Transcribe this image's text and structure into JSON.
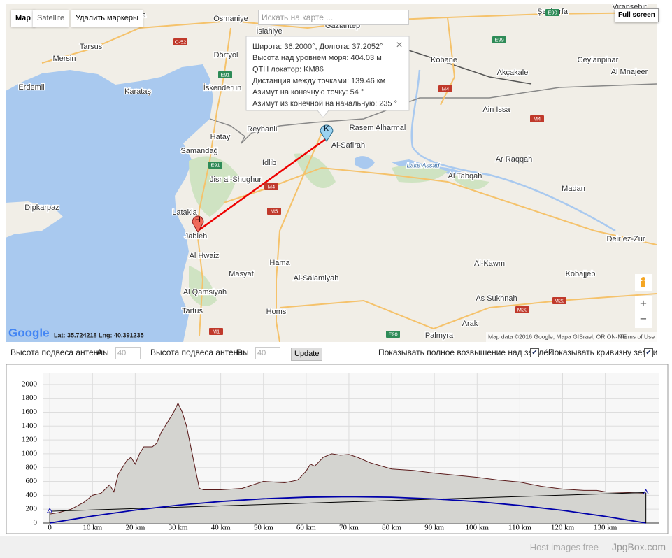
{
  "map": {
    "map_type_buttons": [
      "Map",
      "Satellite"
    ],
    "remove_markers": "Удалить маркеры",
    "search_placeholder": "Искать на карте ...",
    "fullscreen": "Full screen",
    "popup_lines": [
      "Широта: 36.2000°, Долгота: 37.2052°",
      "Высота над уровнем моря: 404.03 м",
      "QTH локатор: KM86",
      "Дистанция между точками: 139.46 км",
      "Азимут на конечную точку: 54 °",
      "Азимут из конечной на начальную: 235 °"
    ],
    "popup_close": "×",
    "place_labels": [
      "Adana",
      "Osmaniye",
      "İslahiye",
      "Gaziantep",
      "Şanlıurfa",
      "Viranşehir",
      "Tarsus",
      "Mersin",
      "Dörtyol",
      "Erdemli",
      "Karataş",
      "İskenderun",
      "Kobane",
      "Akçakale",
      "Ceylanpinar",
      "Al Mnajeer",
      "Ain Issa",
      "Hatay",
      "Reyhanlı",
      "Rasem Alharmal",
      "Al-Safirah",
      "Samandağ",
      "Idlib",
      "Lake Assad",
      "Al Tabqah",
      "Ar Raqqah",
      "Jisr al-Shughur",
      "Madan",
      "Dipkarpaz",
      "Latakia",
      "Jableh",
      "Al Hwaiz",
      "Hama",
      "Masyaf",
      "Al-Salamiyah",
      "Deir ez-Zur",
      "Al-Kawm",
      "Kobajjeb",
      "Al Qamsiyah",
      "As Sukhnah",
      "Tartus",
      "Homs",
      "Arak",
      "Palmyra"
    ],
    "road_shields": [
      "E90",
      "O-52",
      "E91",
      "E91",
      "M4",
      "M4",
      "M4",
      "M5",
      "M1",
      "E99",
      "M20",
      "M20",
      "E90"
    ],
    "markers": [
      "K",
      "H"
    ],
    "logo": "Google",
    "cursor": "Lat: 35.724218 Lng: 40.391235",
    "attribution": "Map data ©2016 Google, Mapa GISrael, ORION-ME",
    "terms": "Terms of Use",
    "zoom_in": "+",
    "zoom_out": "−"
  },
  "controls": {
    "antenna_a_label": "Высота подвеса антенны",
    "antenna_a_letter": "A:",
    "antenna_a_value": "40",
    "antenna_b_label": "Высота подвеса антенны",
    "antenna_b_letter": "B:",
    "antenna_b_value": "40",
    "update": "Update",
    "show_elevation": "Показывать полное возвышение над землёй",
    "show_curvature": "Показывать кривизну земли"
  },
  "chart_data": {
    "type": "area",
    "xlim": [
      -1.5,
      142.5
    ],
    "ylim": [
      0,
      2170
    ],
    "xticks": [
      0,
      {
        "value": 10,
        "label": "10 km"
      },
      {
        "value": 20,
        "label": "20 km"
      },
      {
        "value": 30,
        "label": "30 km"
      },
      {
        "value": 40,
        "label": "40 km"
      },
      {
        "value": 50,
        "label": "50 km"
      },
      {
        "value": 60,
        "label": "60 km"
      },
      {
        "value": 70,
        "label": "70 km"
      },
      {
        "value": 80,
        "label": "80 km"
      },
      {
        "value": 90,
        "label": "90 km"
      },
      {
        "value": 100,
        "label": "100 km"
      },
      {
        "value": 110,
        "label": "110 km"
      },
      {
        "value": 120,
        "label": "120 km"
      },
      {
        "value": 130,
        "label": "130 km"
      }
    ],
    "yticks": [
      0,
      200,
      400,
      600,
      800,
      1000,
      1200,
      1400,
      1600,
      1800,
      2000
    ],
    "grid": true,
    "series": [
      {
        "color": "#d4d4d0",
        "x": [
          0,
          2,
          5,
          8,
          10,
          12,
          14,
          15,
          16,
          18,
          19,
          20,
          21,
          22,
          24,
          25,
          26,
          27,
          28,
          29,
          30,
          31,
          32,
          33,
          34,
          35,
          36,
          40,
          45,
          50,
          55,
          58,
          60,
          61,
          62,
          64,
          66,
          68,
          70,
          72,
          75,
          80,
          85,
          90,
          95,
          100,
          105,
          110,
          115,
          120,
          125,
          128,
          130,
          135,
          139.5
        ],
        "values": [
          130,
          150,
          200,
          300,
          400,
          430,
          550,
          450,
          700,
          900,
          950,
          850,
          1000,
          1100,
          1100,
          1150,
          1300,
          1400,
          1500,
          1600,
          1730,
          1600,
          1400,
          1100,
          800,
          500,
          480,
          480,
          500,
          600,
          580,
          620,
          750,
          850,
          820,
          950,
          1000,
          980,
          990,
          950,
          870,
          780,
          760,
          720,
          690,
          660,
          620,
          590,
          530,
          490,
          470,
          470,
          450,
          440,
          430
        ]
      },
      {
        "color": "#000000",
        "x": [
          0,
          139.5
        ],
        "values": [
          170,
          440
        ]
      },
      {
        "color": "#0000aa",
        "x": [
          0,
          10,
          20,
          30,
          40,
          50,
          60,
          70,
          80,
          90,
          100,
          110,
          120,
          130,
          139.5
        ],
        "values": [
          0,
          101,
          187,
          257,
          311,
          350,
          373,
          380,
          372,
          348,
          309,
          253,
          183,
          96,
          0
        ]
      }
    ]
  },
  "footer": {
    "text": "Host images free",
    "brand": "JpgBox.com"
  }
}
